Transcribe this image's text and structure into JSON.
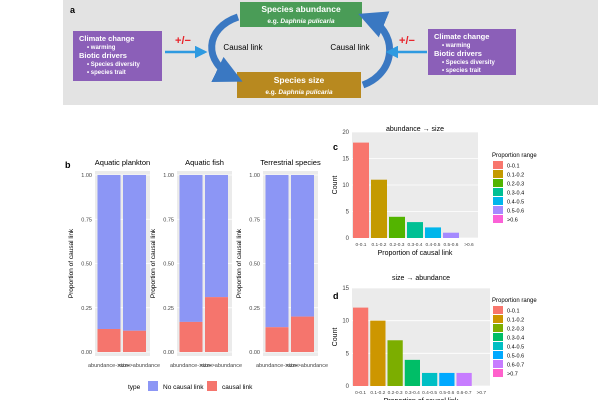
{
  "panel_a": {
    "label": "a",
    "abundance_box": {
      "title": "Species abundance",
      "subtitle_prefix": "e.g. ",
      "subtitle_species": "Daphnia pulicaria",
      "color": "#4a9c57"
    },
    "size_box": {
      "title": "Species size",
      "subtitle_prefix": "e.g. ",
      "subtitle_species": "Daphnia pulicaria",
      "color": "#b8891f"
    },
    "causal_left": "Causal link",
    "causal_right": "Causal link",
    "sign": "+/−",
    "sign_color": "#e8232a",
    "arrow_color": "#2e9ae0",
    "driver_color": "#8b5fb8",
    "drivers": [
      {
        "heading1": "Climate change",
        "items1": [
          "warming"
        ],
        "heading2": "Biotic drivers",
        "items2": [
          "Species diversity",
          "species trait"
        ]
      },
      {
        "heading1": "Climate change",
        "items1": [
          "warming"
        ],
        "heading2": "Biotic drivers",
        "items2": [
          "Species diversity",
          "species trait"
        ]
      }
    ]
  },
  "panel_b": {
    "label": "b",
    "ylabel": "Proportion of causal link",
    "yticks": [
      "0.00",
      "0.25",
      "0.50",
      "0.75",
      "1.00"
    ],
    "categories": [
      "abundance->size",
      "size->abundance"
    ],
    "legend_title": "type",
    "legend_no": "No causal link",
    "legend_yes": "causal link",
    "color_no": "#8c96f5",
    "color_yes": "#f5756d",
    "facets": [
      {
        "title": "Aquatic plankton",
        "causal": [
          0.13,
          0.12
        ]
      },
      {
        "title": "Aquatic fish",
        "causal": [
          0.17,
          0.31
        ]
      },
      {
        "title": "Terrestrial species",
        "causal": [
          0.14,
          0.2
        ]
      }
    ]
  },
  "chart_data": [
    {
      "type": "bar",
      "panel": "c",
      "title": "abundance → size",
      "xlabel": "Proportion of causal link",
      "ylabel": "Count",
      "categories": [
        "0-0.1",
        "0.1-0.2",
        "0.2-0.3",
        "0.3-0.4",
        "0.4-0.5",
        "0.5-0.6",
        ">0.6"
      ],
      "values": [
        18,
        11,
        4,
        3,
        2,
        1,
        0
      ],
      "ylim": [
        0,
        20
      ],
      "yticks": [
        "0",
        "5",
        "10",
        "15",
        "20"
      ],
      "colors": [
        "#f8766d",
        "#c49a00",
        "#53b400",
        "#00c094",
        "#00b6eb",
        "#a58aff",
        "#fb61d7"
      ],
      "legend_title": "Proportion range",
      "legend": [
        "0-0.1",
        "0.1-0.2",
        "0.2-0.3",
        "0.3-0.4",
        "0.4-0.5",
        "0.5-0.6",
        ">0.6"
      ]
    },
    {
      "type": "bar",
      "panel": "d",
      "title": "size → abundance",
      "xlabel": "Proportion of causal link",
      "ylabel": "Count",
      "categories": [
        "0-0.1",
        "0.1-0.2",
        "0.2-0.3",
        "0.3-0.4",
        "0.4-0.5",
        "0.5-0.6",
        "0.6-0.7",
        ">0.7"
      ],
      "values": [
        12,
        10,
        7,
        4,
        2,
        2,
        2,
        0
      ],
      "ylim": [
        0,
        15
      ],
      "yticks": [
        "0",
        "5",
        "10",
        "15"
      ],
      "colors": [
        "#f8766d",
        "#cd9600",
        "#7cae00",
        "#00be67",
        "#00bfc4",
        "#00a9ff",
        "#c77cff",
        "#ff61cc"
      ],
      "legend_title": "Proportion range",
      "legend": [
        "0-0.1",
        "0.1-0.2",
        "0.2-0.3",
        "0.3-0.4",
        "0.4-0.5",
        "0.5-0.6",
        "0.6-0.7",
        ">0.7"
      ]
    }
  ]
}
